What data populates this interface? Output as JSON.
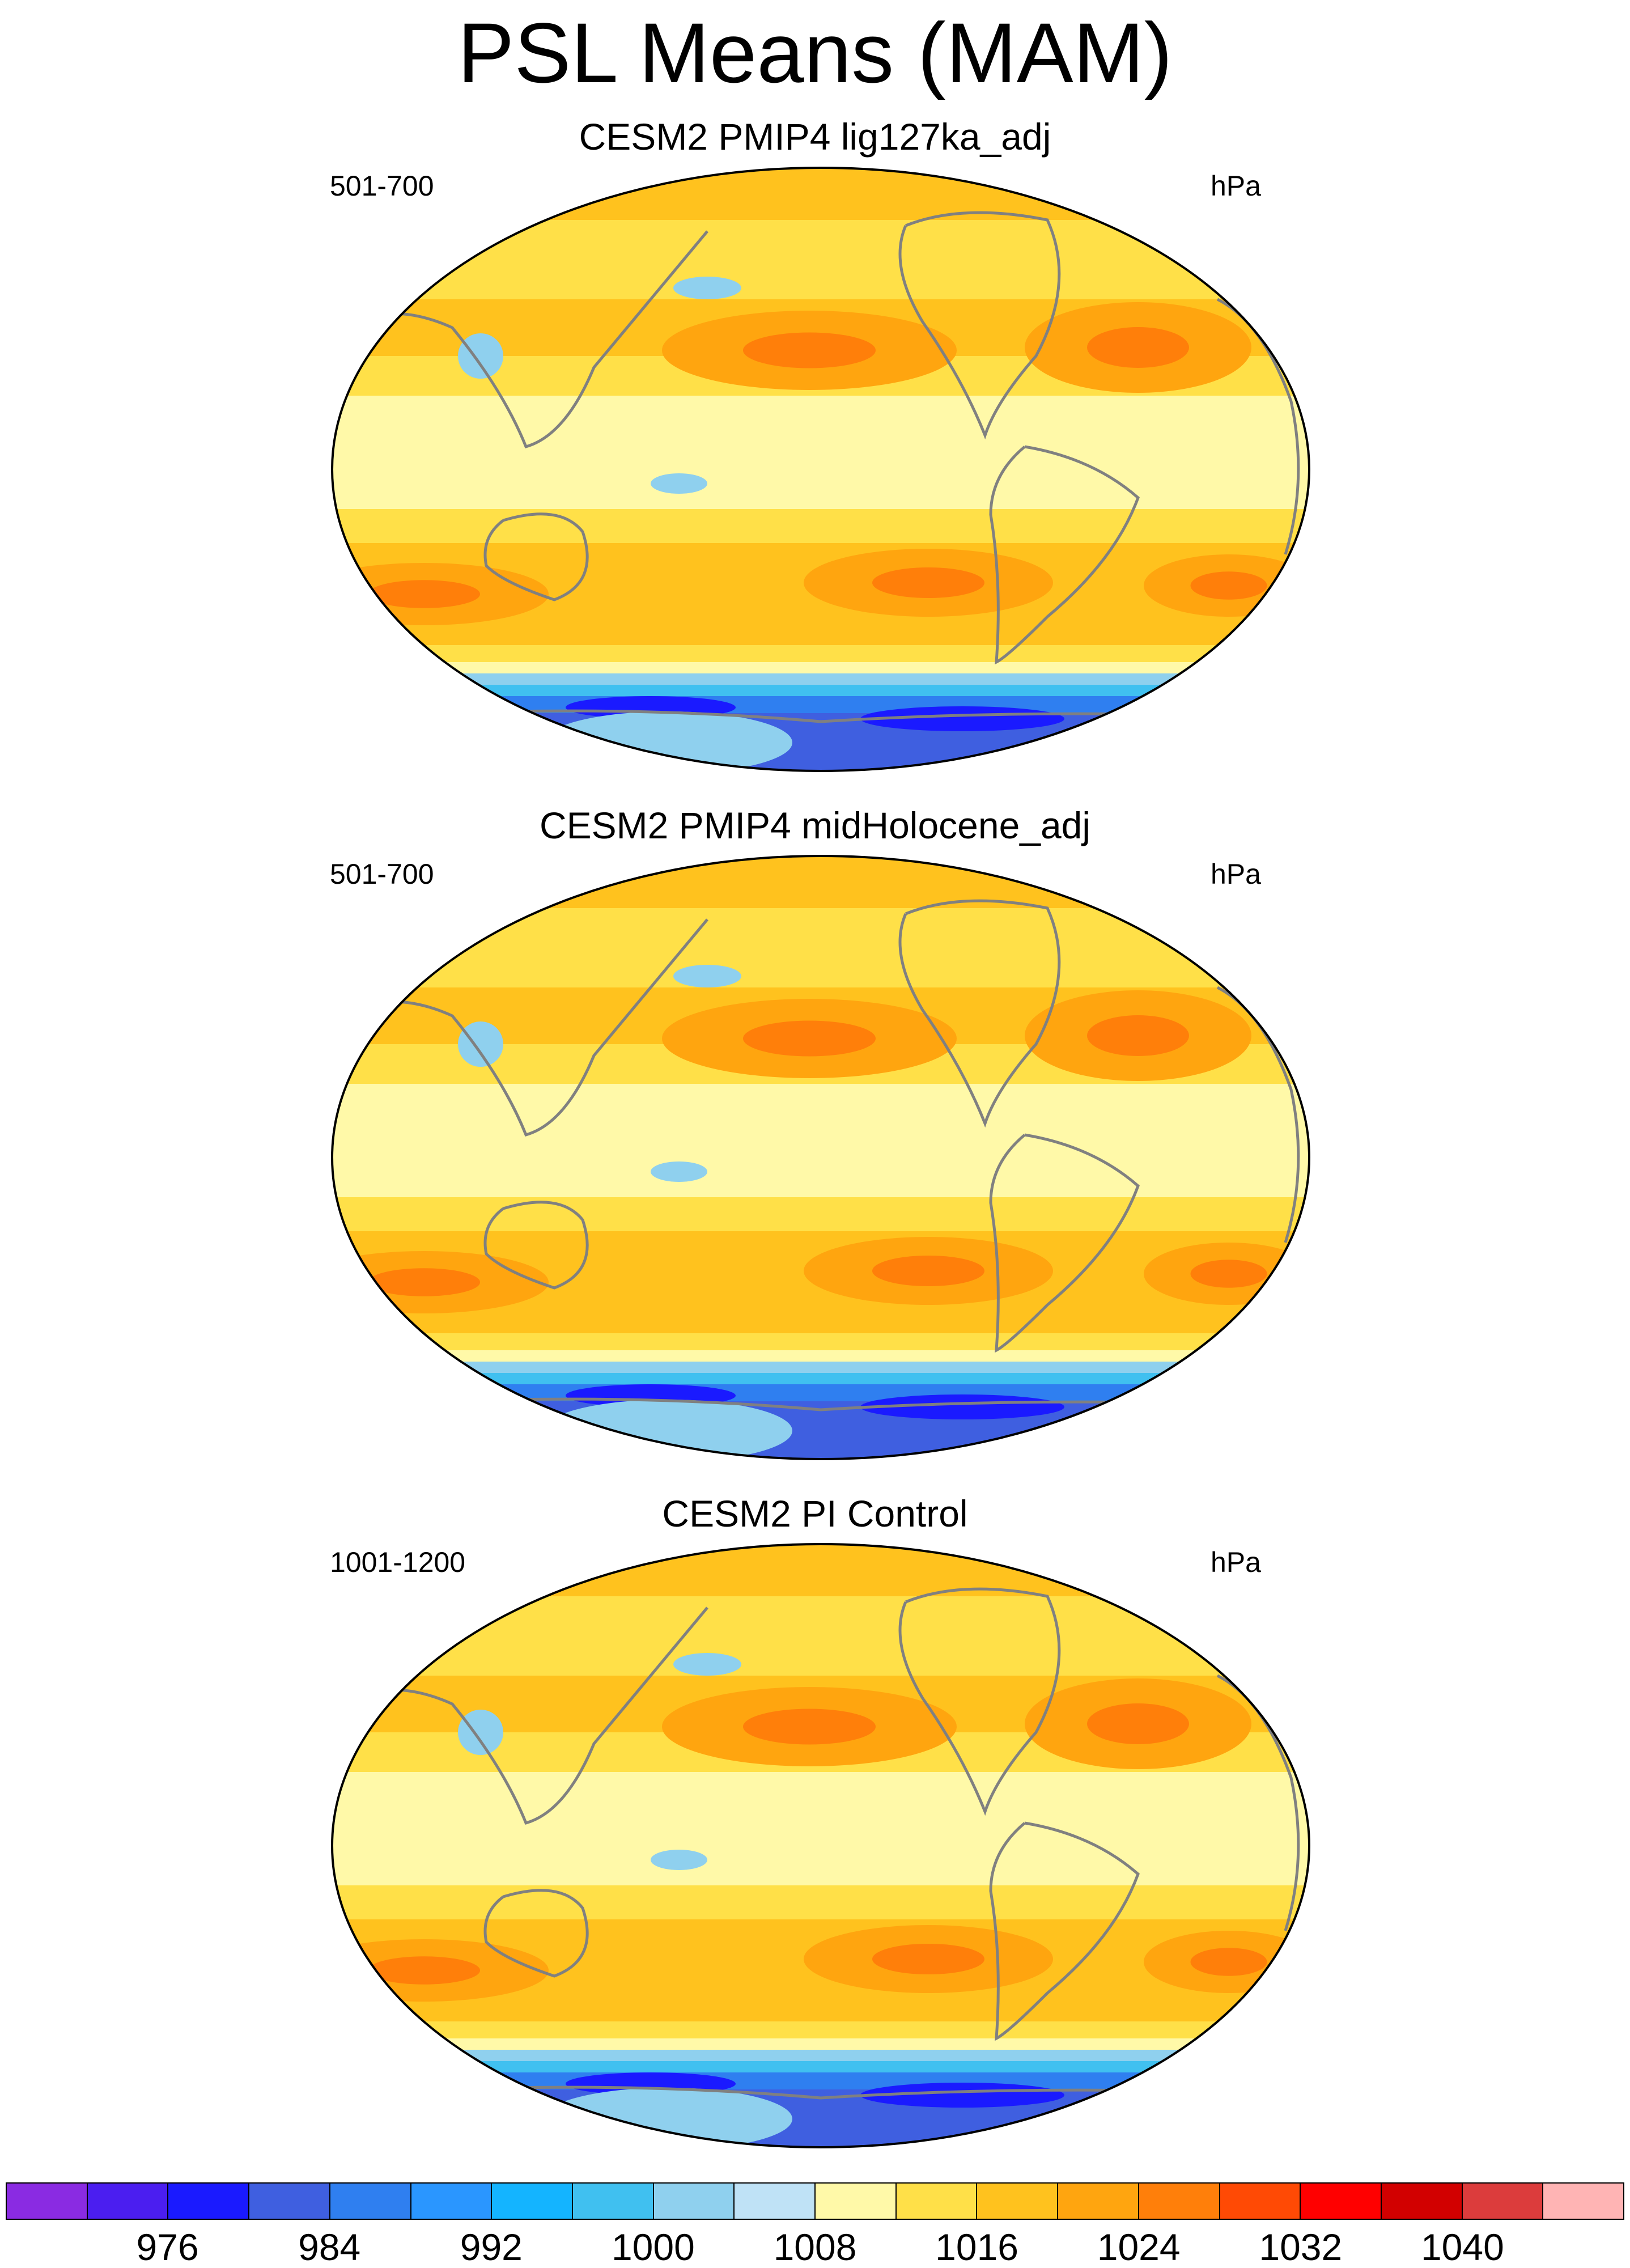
{
  "figure": {
    "title": "PSL Means (MAM)"
  },
  "panels": [
    {
      "title": "CESM2 PMIP4 lig127ka_adj",
      "years": "501-700",
      "units": "hPa"
    },
    {
      "title": "CESM2 PMIP4 midHolocene_adj",
      "years": "501-700",
      "units": "hPa"
    },
    {
      "title": "CESM2 PI Control",
      "years": "1001-1200",
      "units": "hPa"
    }
  ],
  "colorbar": {
    "labels": [
      "976",
      "984",
      "992",
      "1000",
      "1008",
      "1016",
      "1024",
      "1032",
      "1040"
    ],
    "colors": [
      "#8a2be2",
      "#4b1ef0",
      "#1a1aff",
      "#3f5fe0",
      "#2f7ff0",
      "#2a96ff",
      "#14b4ff",
      "#40c0f0",
      "#8fd0ee",
      "#bfe2f6",
      "#fff9a8",
      "#ffe048",
      "#ffc21e",
      "#ffa50f",
      "#ff7f0a",
      "#ff4a05",
      "#ff0000",
      "#d20000",
      "#dc3c3c",
      "#ffb4b4"
    ]
  },
  "map_fill": {
    "ocean_base": "#fff9a8",
    "mid_band": "#ffe048",
    "high_band": "#ffc21e",
    "peak": "#ffa50f",
    "core": "#ff7f0a",
    "south_light": "#8fd0ee",
    "south_mid": "#2f7ff0",
    "south_deep": "#3f5fe0",
    "south_low": "#1a1aff",
    "coast": "#808080"
  }
}
